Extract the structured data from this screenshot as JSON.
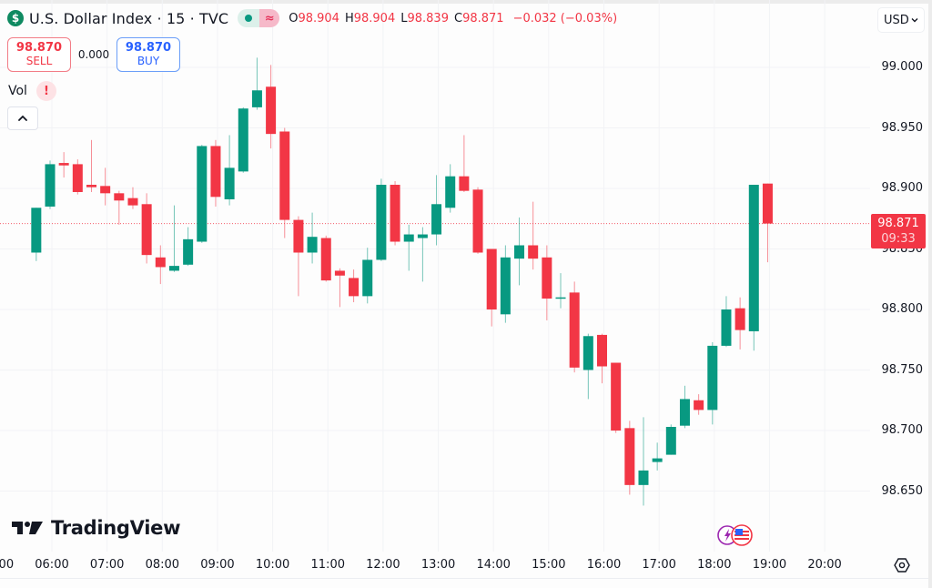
{
  "header": {
    "symbol_icon": "dollar-sign-icon",
    "title": "U.S. Dollar Index · 15 · TVC",
    "status_dot": "market-open-dot-icon",
    "status_delayed": "≈",
    "ohlc": {
      "o_label": "O",
      "o": "98.904",
      "h_label": "H",
      "h": "98.904",
      "l_label": "L",
      "l": "98.839",
      "c_label": "C",
      "c": "98.871",
      "change": "−0.032 (−0.03%)"
    }
  },
  "trade": {
    "sell_price": "98.870",
    "sell_label": "SELL",
    "spread": "0.000",
    "buy_price": "98.870",
    "buy_label": "BUY"
  },
  "indicators": {
    "vol_label": "Vol",
    "vol_warning": "!"
  },
  "currency": {
    "selected": "USD"
  },
  "last_price": {
    "value": "98.871",
    "countdown": "09:33"
  },
  "branding": {
    "name": "TradingView"
  },
  "colors": {
    "up": "#089981",
    "down": "#f23645",
    "buy": "#2962ff",
    "grid": "#f0f3fa"
  },
  "chart_data": {
    "type": "candlestick",
    "title": "U.S. Dollar Index · 15 · TVC",
    "interval": "15",
    "xlabel": "",
    "ylabel": "USD",
    "ylim": [
      98.615,
      99.033
    ],
    "y_ticks": [
      "99.000",
      "98.950",
      "98.900",
      "98.850",
      "98.800",
      "98.750",
      "98.700",
      "98.650"
    ],
    "x_ticks": [
      "06:00",
      "07:00",
      "08:00",
      "09:00",
      "10:00",
      "11:00",
      "12:00",
      "13:00",
      "14:00",
      "15:00",
      "16:00",
      "17:00",
      "18:00",
      "19:00",
      "20:00"
    ],
    "last_price": 98.871,
    "candles": [
      {
        "t": "05:45",
        "o": 98.847,
        "h": 98.884,
        "l": 98.84,
        "c": 98.884
      },
      {
        "t": "06:00",
        "o": 98.885,
        "h": 98.923,
        "l": 98.883,
        "c": 98.92
      },
      {
        "t": "06:15",
        "o": 98.921,
        "h": 98.93,
        "l": 98.909,
        "c": 98.919
      },
      {
        "t": "06:30",
        "o": 98.92,
        "h": 98.924,
        "l": 98.895,
        "c": 98.897
      },
      {
        "t": "06:45",
        "o": 98.903,
        "h": 98.94,
        "l": 98.897,
        "c": 98.901
      },
      {
        "t": "07:00",
        "o": 98.902,
        "h": 98.917,
        "l": 98.886,
        "c": 98.896
      },
      {
        "t": "07:15",
        "o": 98.896,
        "h": 98.898,
        "l": 98.87,
        "c": 98.89
      },
      {
        "t": "07:30",
        "o": 98.892,
        "h": 98.901,
        "l": 98.883,
        "c": 98.886
      },
      {
        "t": "07:45",
        "o": 98.887,
        "h": 98.896,
        "l": 98.838,
        "c": 98.845
      },
      {
        "t": "08:00",
        "o": 98.843,
        "h": 98.853,
        "l": 98.821,
        "c": 98.835
      },
      {
        "t": "08:15",
        "o": 98.832,
        "h": 98.886,
        "l": 98.831,
        "c": 98.836
      },
      {
        "t": "08:30",
        "o": 98.837,
        "h": 98.868,
        "l": 98.836,
        "c": 98.858
      },
      {
        "t": "08:45",
        "o": 98.856,
        "h": 98.936,
        "l": 98.855,
        "c": 98.935
      },
      {
        "t": "09:00",
        "o": 98.935,
        "h": 98.94,
        "l": 98.885,
        "c": 98.893
      },
      {
        "t": "09:15",
        "o": 98.891,
        "h": 98.944,
        "l": 98.886,
        "c": 98.917
      },
      {
        "t": "09:30",
        "o": 98.914,
        "h": 98.967,
        "l": 98.913,
        "c": 98.966
      },
      {
        "t": "09:45",
        "o": 98.967,
        "h": 99.008,
        "l": 98.965,
        "c": 98.981
      },
      {
        "t": "10:00",
        "o": 98.984,
        "h": 99.002,
        "l": 98.933,
        "c": 98.945
      },
      {
        "t": "10:15",
        "o": 98.947,
        "h": 98.95,
        "l": 98.859,
        "c": 98.874
      },
      {
        "t": "10:30",
        "o": 98.874,
        "h": 98.877,
        "l": 98.811,
        "c": 98.847
      },
      {
        "t": "10:45",
        "o": 98.847,
        "h": 98.88,
        "l": 98.838,
        "c": 98.86
      },
      {
        "t": "11:00",
        "o": 98.859,
        "h": 98.861,
        "l": 98.823,
        "c": 98.824
      },
      {
        "t": "11:15",
        "o": 98.832,
        "h": 98.834,
        "l": 98.802,
        "c": 98.828
      },
      {
        "t": "11:30",
        "o": 98.826,
        "h": 98.833,
        "l": 98.806,
        "c": 98.811
      },
      {
        "t": "11:45",
        "o": 98.811,
        "h": 98.851,
        "l": 98.805,
        "c": 98.841
      },
      {
        "t": "12:00",
        "o": 98.841,
        "h": 98.908,
        "l": 98.84,
        "c": 98.903
      },
      {
        "t": "12:15",
        "o": 98.903,
        "h": 98.906,
        "l": 98.853,
        "c": 98.856
      },
      {
        "t": "12:30",
        "o": 98.856,
        "h": 98.87,
        "l": 98.832,
        "c": 98.862
      },
      {
        "t": "12:45",
        "o": 98.859,
        "h": 98.868,
        "l": 98.823,
        "c": 98.862
      },
      {
        "t": "13:00",
        "o": 98.862,
        "h": 98.911,
        "l": 98.853,
        "c": 98.887
      },
      {
        "t": "13:15",
        "o": 98.884,
        "h": 98.92,
        "l": 98.88,
        "c": 98.91
      },
      {
        "t": "13:30",
        "o": 98.91,
        "h": 98.944,
        "l": 98.897,
        "c": 98.898
      },
      {
        "t": "13:45",
        "o": 98.899,
        "h": 98.901,
        "l": 98.846,
        "c": 98.847
      },
      {
        "t": "14:00",
        "o": 98.85,
        "h": 98.85,
        "l": 98.786,
        "c": 98.8
      },
      {
        "t": "14:15",
        "o": 98.796,
        "h": 98.853,
        "l": 98.789,
        "c": 98.843
      },
      {
        "t": "14:30",
        "o": 98.842,
        "h": 98.876,
        "l": 98.82,
        "c": 98.853
      },
      {
        "t": "14:45",
        "o": 98.853,
        "h": 98.889,
        "l": 98.833,
        "c": 98.842
      },
      {
        "t": "15:00",
        "o": 98.843,
        "h": 98.853,
        "l": 98.791,
        "c": 98.809
      },
      {
        "t": "15:15",
        "o": 98.809,
        "h": 98.83,
        "l": 98.801,
        "c": 98.81
      },
      {
        "t": "15:30",
        "o": 98.814,
        "h": 98.823,
        "l": 98.748,
        "c": 98.752
      },
      {
        "t": "15:45",
        "o": 98.75,
        "h": 98.78,
        "l": 98.726,
        "c": 98.778
      },
      {
        "t": "16:00",
        "o": 98.779,
        "h": 98.78,
        "l": 98.739,
        "c": 98.753
      },
      {
        "t": "16:15",
        "o": 98.756,
        "h": 98.756,
        "l": 98.698,
        "c": 98.7
      },
      {
        "t": "16:30",
        "o": 98.702,
        "h": 98.708,
        "l": 98.647,
        "c": 98.655
      },
      {
        "t": "16:45",
        "o": 98.655,
        "h": 98.711,
        "l": 98.638,
        "c": 98.667
      },
      {
        "t": "17:00",
        "o": 98.674,
        "h": 98.69,
        "l": 98.667,
        "c": 98.677
      },
      {
        "t": "17:15",
        "o": 98.68,
        "h": 98.705,
        "l": 98.68,
        "c": 98.703
      },
      {
        "t": "17:30",
        "o": 98.704,
        "h": 98.737,
        "l": 98.702,
        "c": 98.726
      },
      {
        "t": "17:45",
        "o": 98.725,
        "h": 98.73,
        "l": 98.713,
        "c": 98.717
      },
      {
        "t": "18:00",
        "o": 98.717,
        "h": 98.773,
        "l": 98.705,
        "c": 98.77
      },
      {
        "t": "18:15",
        "o": 98.77,
        "h": 98.811,
        "l": 98.769,
        "c": 98.8
      },
      {
        "t": "18:30",
        "o": 98.801,
        "h": 98.81,
        "l": 98.767,
        "c": 98.783
      },
      {
        "t": "18:45",
        "o": 98.782,
        "h": 98.903,
        "l": 98.766,
        "c": 98.903
      },
      {
        "t": "19:00",
        "o": 98.904,
        "h": 98.904,
        "l": 98.839,
        "c": 98.871
      }
    ]
  }
}
